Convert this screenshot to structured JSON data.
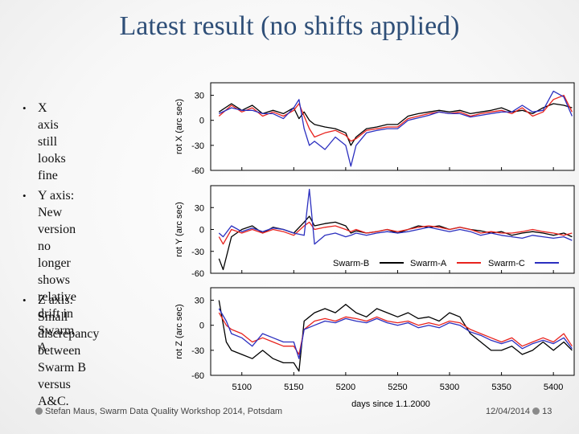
{
  "slide": {
    "title": "Latest result (no shifts applied)",
    "bullets": [
      "X axis still looks\nfine",
      "Y axis: New version\nno longer shows\nrelative drift in\nSwarm A",
      "Z axis: Small\ndiscrepancy\nbetween Swarm B\nversus A&C."
    ],
    "footer_left": "Stefan Maus, Swarm Data Quality Workshop 2014, Potsdam",
    "footer_date": "12/04/2014",
    "page_number": "13"
  },
  "colors": {
    "swarm_b": "#000000",
    "swarm_a": "#e8231e",
    "swarm_c": "#2b2fbf",
    "title": "#2f4f78"
  },
  "chart_data": {
    "type": "line",
    "xlabel": "days since 1.1.2000",
    "xlim": [
      5070,
      5420
    ],
    "x_ticks": [
      "5100",
      "5150",
      "5200",
      "5250",
      "5300",
      "5350",
      "5400"
    ],
    "legend": [
      "Swarm-B",
      "Swarm-A",
      "Swarm-C"
    ],
    "panels": [
      {
        "id": "x",
        "ylabel": "rot X (arc sec)",
        "ylim": [
          -60,
          45
        ],
        "y_ticks": [
          "30",
          "0",
          "-30",
          "-60"
        ],
        "x": [
          5078,
          5090,
          5100,
          5110,
          5120,
          5130,
          5140,
          5150,
          5155,
          5160,
          5165,
          5170,
          5180,
          5190,
          5200,
          5205,
          5210,
          5220,
          5230,
          5240,
          5250,
          5260,
          5270,
          5280,
          5290,
          5300,
          5310,
          5320,
          5330,
          5340,
          5350,
          5360,
          5370,
          5380,
          5390,
          5400,
          5410,
          5418
        ],
        "series": [
          {
            "name": "Swarm-B",
            "values": [
              10,
              20,
              12,
              18,
              8,
              12,
              8,
              15,
              2,
              10,
              0,
              -5,
              -8,
              -10,
              -15,
              -30,
              -20,
              -10,
              -8,
              -5,
              -5,
              5,
              8,
              10,
              12,
              10,
              12,
              8,
              10,
              12,
              15,
              10,
              12,
              8,
              15,
              20,
              18,
              15
            ]
          },
          {
            "name": "Swarm-A",
            "values": [
              5,
              18,
              10,
              15,
              5,
              10,
              5,
              12,
              20,
              5,
              -10,
              -20,
              -15,
              -12,
              -18,
              -25,
              -22,
              -12,
              -10,
              -8,
              -8,
              2,
              5,
              8,
              10,
              8,
              10,
              5,
              8,
              10,
              12,
              8,
              15,
              5,
              10,
              25,
              30,
              10
            ]
          },
          {
            "name": "Swarm-C",
            "values": [
              8,
              15,
              12,
              12,
              8,
              8,
              2,
              15,
              25,
              -10,
              -30,
              -25,
              -35,
              -20,
              -30,
              -55,
              -30,
              -15,
              -12,
              -10,
              -10,
              0,
              3,
              6,
              10,
              8,
              8,
              4,
              6,
              8,
              10,
              10,
              18,
              10,
              12,
              35,
              28,
              5
            ]
          }
        ]
      },
      {
        "id": "y",
        "ylabel": "rot Y (arc sec)",
        "ylim": [
          -60,
          60
        ],
        "y_ticks": [
          "30",
          "0",
          "-30",
          "-60"
        ],
        "x": [
          5078,
          5082,
          5090,
          5100,
          5110,
          5120,
          5130,
          5140,
          5150,
          5160,
          5165,
          5170,
          5180,
          5190,
          5200,
          5205,
          5210,
          5220,
          5230,
          5240,
          5250,
          5260,
          5270,
          5280,
          5290,
          5300,
          5310,
          5320,
          5330,
          5340,
          5350,
          5360,
          5370,
          5380,
          5390,
          5400,
          5410,
          5418
        ],
        "series": [
          {
            "name": "Swarm-B",
            "values": [
              -40,
              -55,
              -10,
              0,
              5,
              -5,
              3,
              0,
              -5,
              10,
              18,
              5,
              8,
              10,
              5,
              -5,
              -2,
              -5,
              -3,
              0,
              -5,
              0,
              5,
              3,
              5,
              0,
              3,
              0,
              -2,
              -5,
              -3,
              -8,
              -5,
              -3,
              -5,
              -8,
              -5,
              -10
            ]
          },
          {
            "name": "Swarm-A",
            "values": [
              -10,
              -20,
              0,
              -5,
              0,
              -5,
              0,
              -3,
              -8,
              5,
              10,
              0,
              3,
              5,
              0,
              -3,
              0,
              -5,
              -3,
              0,
              -3,
              0,
              3,
              5,
              3,
              0,
              3,
              0,
              -5,
              -3,
              -5,
              -5,
              -3,
              0,
              -3,
              -5,
              -8,
              -5
            ]
          },
          {
            "name": "Swarm-C",
            "values": [
              -5,
              -10,
              5,
              -3,
              2,
              -3,
              2,
              0,
              -5,
              -8,
              55,
              -20,
              -8,
              -5,
              -10,
              -8,
              -5,
              -8,
              -5,
              -3,
              -5,
              -3,
              0,
              3,
              0,
              -3,
              0,
              -3,
              -8,
              -5,
              -8,
              -10,
              -12,
              -8,
              -10,
              -12,
              -10,
              -15
            ]
          }
        ]
      },
      {
        "id": "z",
        "ylabel": "rot Z (arc sec)",
        "ylim": [
          -60,
          45
        ],
        "y_ticks": [
          "30",
          "0",
          "-30",
          "-60"
        ],
        "x": [
          5078,
          5085,
          5090,
          5100,
          5110,
          5120,
          5130,
          5140,
          5150,
          5155,
          5160,
          5170,
          5180,
          5190,
          5200,
          5210,
          5220,
          5230,
          5240,
          5250,
          5260,
          5270,
          5280,
          5290,
          5300,
          5310,
          5320,
          5330,
          5340,
          5350,
          5360,
          5370,
          5380,
          5390,
          5400,
          5410,
          5418
        ],
        "series": [
          {
            "name": "Swarm-B",
            "values": [
              30,
              -20,
              -30,
              -35,
              -40,
              -30,
              -40,
              -45,
              -45,
              -55,
              5,
              15,
              20,
              15,
              25,
              15,
              10,
              20,
              15,
              10,
              15,
              8,
              10,
              5,
              15,
              10,
              -10,
              -20,
              -30,
              -30,
              -25,
              -35,
              -30,
              -20,
              -30,
              -20,
              -30
            ]
          },
          {
            "name": "Swarm-A",
            "values": [
              15,
              0,
              -5,
              -10,
              -20,
              -15,
              -20,
              -25,
              -25,
              -35,
              -5,
              5,
              8,
              5,
              10,
              8,
              5,
              10,
              5,
              3,
              5,
              0,
              3,
              0,
              5,
              3,
              -5,
              -10,
              -15,
              -20,
              -15,
              -25,
              -20,
              -15,
              -20,
              -10,
              -25
            ]
          },
          {
            "name": "Swarm-C",
            "values": [
              20,
              5,
              -10,
              -15,
              -25,
              -10,
              -15,
              -20,
              -20,
              -40,
              -5,
              0,
              5,
              3,
              8,
              5,
              3,
              8,
              3,
              0,
              3,
              -3,
              0,
              -3,
              3,
              0,
              -8,
              -12,
              -18,
              -22,
              -18,
              -28,
              -22,
              -18,
              -22,
              -15,
              -28
            ]
          }
        ]
      }
    ]
  }
}
